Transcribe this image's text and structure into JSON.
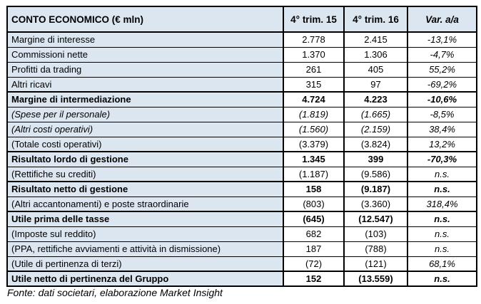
{
  "table": {
    "header": {
      "label": "CONTO ECONOMICO (€ mln)",
      "col_q15": "4° trim. 15",
      "col_q16": "4° trim. 16",
      "col_var": "Var. a/a"
    },
    "rows": [
      {
        "label": "Margine di interesse",
        "q15": "2.778",
        "q16": "2.415",
        "var": "-13,1%"
      },
      {
        "label": "Commissioni nette",
        "q15": "1.370",
        "q16": "1.306",
        "var": "-4,7%"
      },
      {
        "label": "Profitti da trading",
        "q15": "261",
        "q16": "405",
        "var": "55,2%"
      },
      {
        "label": "Altri ricavi",
        "q15": "315",
        "q16": "97",
        "var": "-69,2%"
      },
      {
        "label": "Margine di intermediazione",
        "q15": "4.724",
        "q16": "4.223",
        "var": "-10,6%"
      },
      {
        "label": "(Spese per il personale)",
        "q15": "(1.819)",
        "q16": "(1.665)",
        "var": "-8,5%"
      },
      {
        "label": "(Altri costi operativi)",
        "q15": "(1.560)",
        "q16": "(2.159)",
        "var": "38,4%"
      },
      {
        "label": "(Totale costi operativi)",
        "q15": "(3.379)",
        "q16": "(3.824)",
        "var": "13,2%"
      },
      {
        "label": "Risultato lordo di gestione",
        "q15": "1.345",
        "q16": "399",
        "var": "-70,3%"
      },
      {
        "label": "(Rettifiche su crediti)",
        "q15": "(1.187)",
        "q16": "(9.586)",
        "var": "n.s."
      },
      {
        "label": "Risultato netto di gestione",
        "q15": "158",
        "q16": "(9.187)",
        "var": "n.s."
      },
      {
        "label": "(Altri accantonamenti) e poste straordinarie",
        "q15": "(803)",
        "q16": "(3.360)",
        "var": "318,4%"
      },
      {
        "label": "Utile prima delle tasse",
        "q15": "(645)",
        "q16": "(12.547)",
        "var": "n.s."
      },
      {
        "label": "(Imposte sul reddito)",
        "q15": "682",
        "q16": "(103)",
        "var": "n.s."
      },
      {
        "label": "(PPA, rettifiche avviamenti e attività in dismissione)",
        "q15": "187",
        "q16": "(788)",
        "var": "n.s."
      },
      {
        "label": "(Utile di pertinenza di terzi)",
        "q15": "(72)",
        "q16": "(121)",
        "var": "68,1%"
      },
      {
        "label": "Utile netto di pertinenza del Gruppo",
        "q15": "152",
        "q16": "(13.559)",
        "var": "n.s."
      }
    ]
  },
  "footer": {
    "source": "Fonte: dati societari, elaborazione Market Insight"
  },
  "colors": {
    "label_column_bg": "#dce6f1",
    "value_cell_bg": "#ffffff",
    "border": "#000000",
    "text": "#000000"
  }
}
